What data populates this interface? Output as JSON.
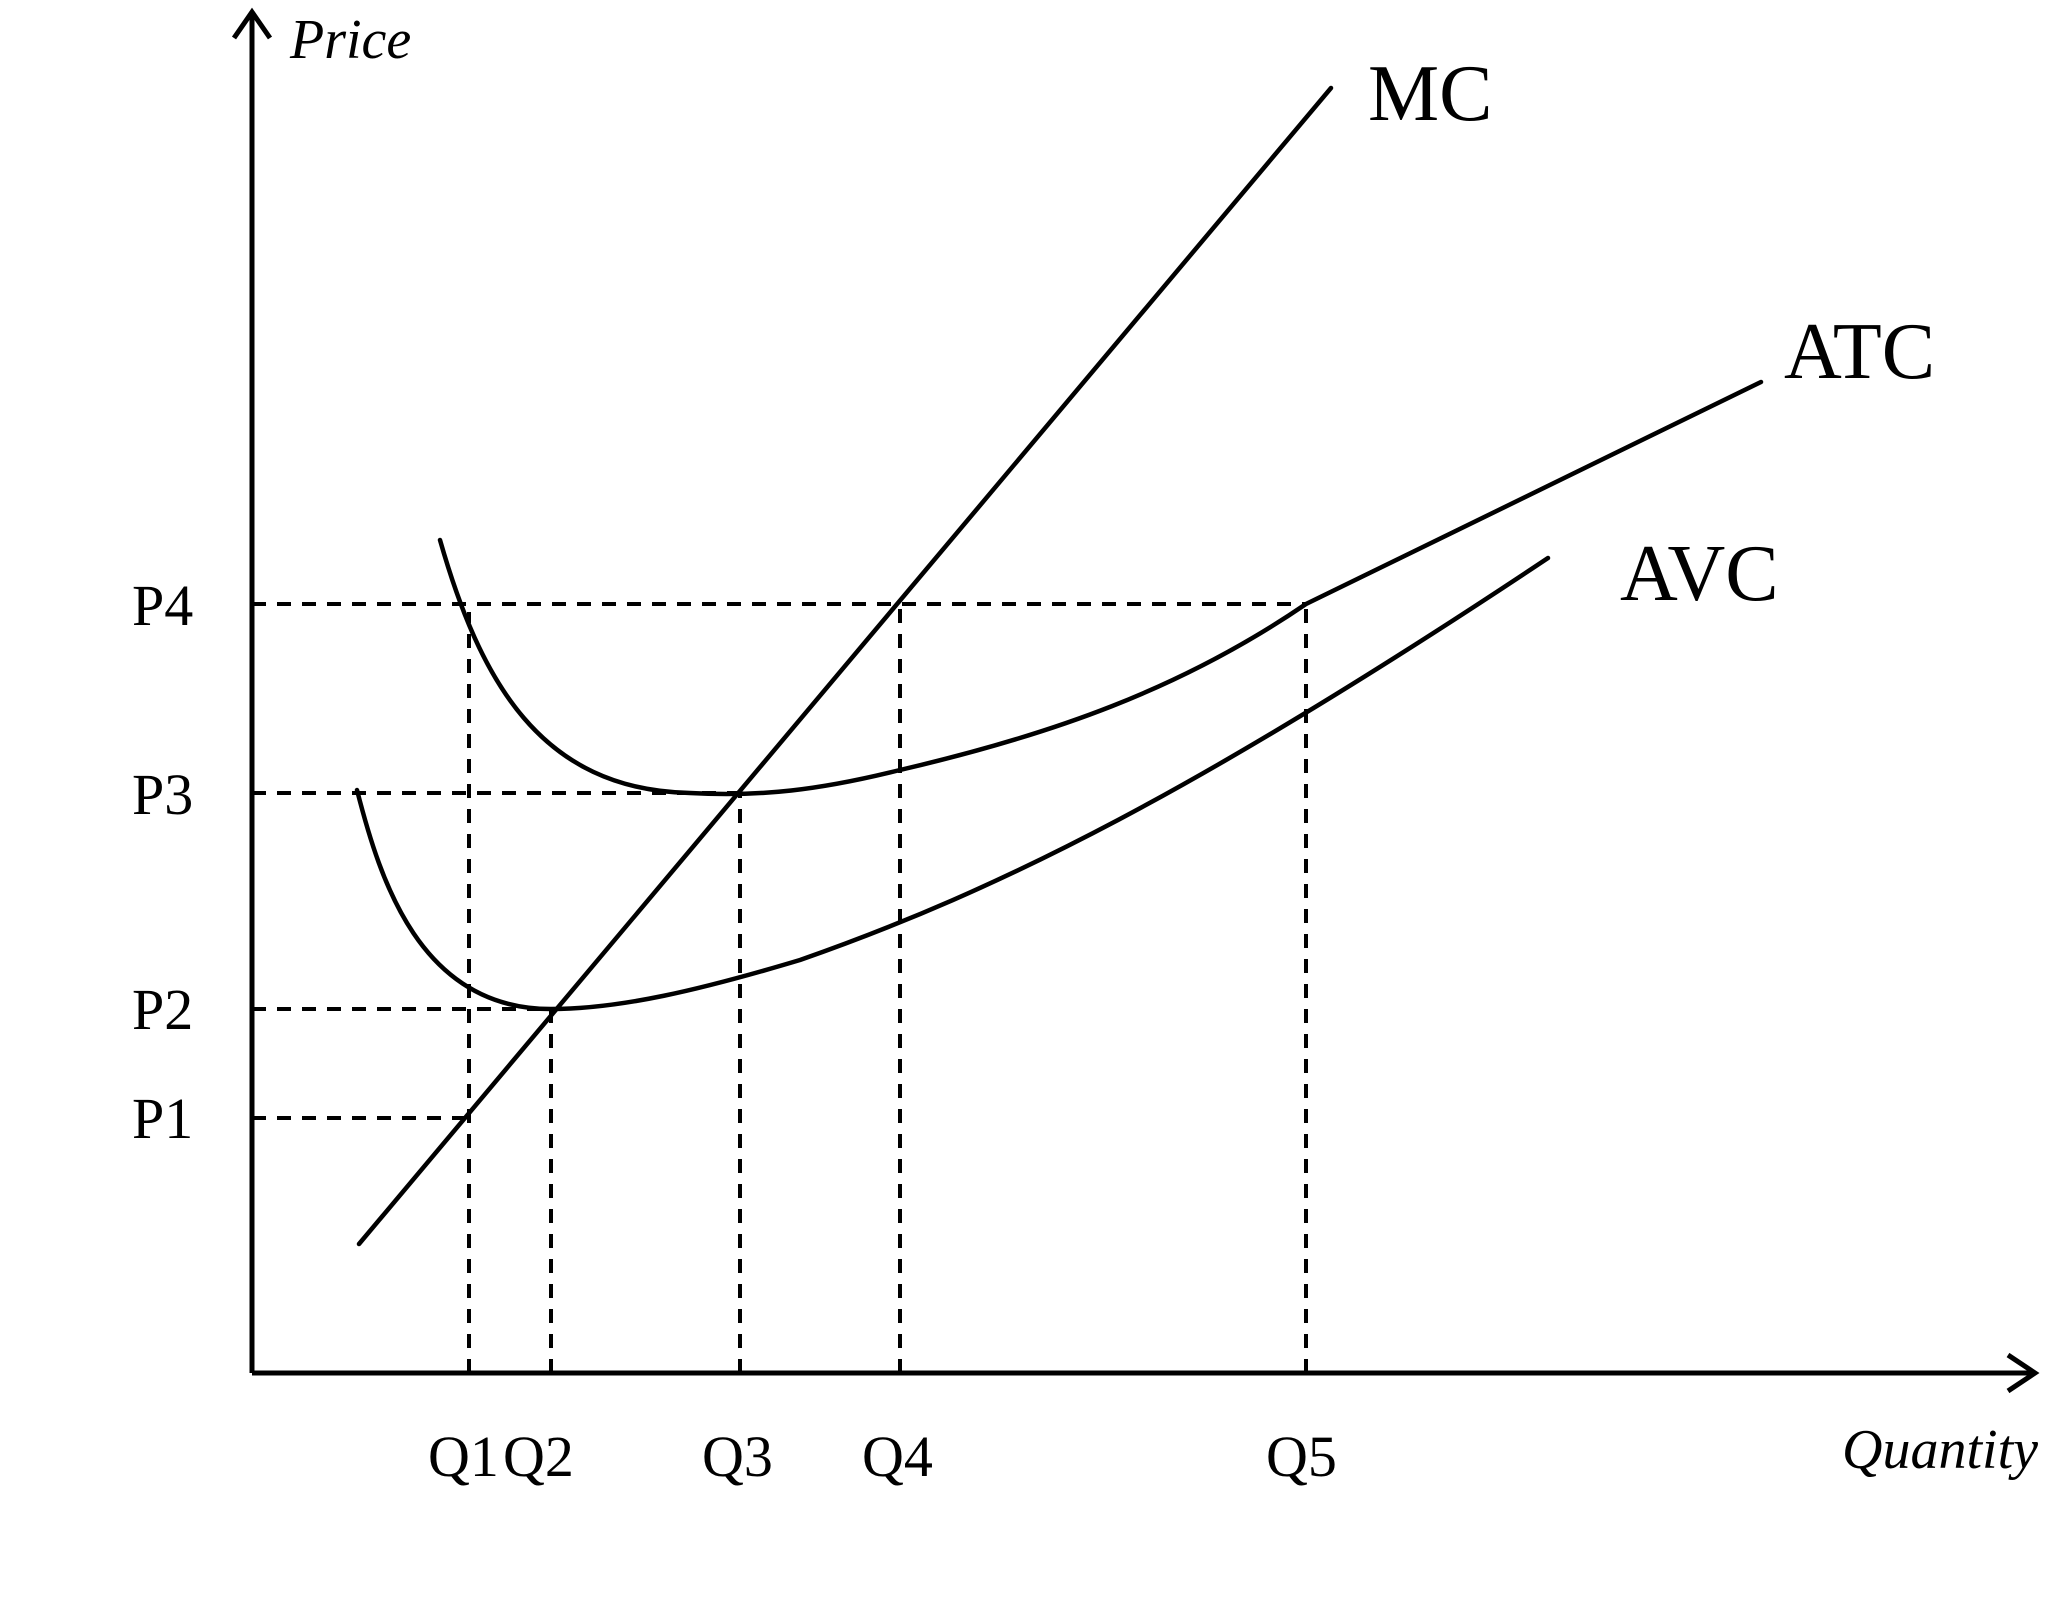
{
  "chart_data": {
    "type": "line",
    "title": "",
    "xlabel": "Quantity",
    "ylabel": "Price",
    "grid": false,
    "legend": "none (curve names labeled directly at line ends)",
    "x_ticks": [
      "Q1",
      "Q2",
      "Q3",
      "Q4",
      "Q5"
    ],
    "y_ticks": [
      "P1",
      "P2",
      "P3",
      "P4"
    ],
    "series": [
      {
        "name": "MC"
      },
      {
        "name": "ATC"
      },
      {
        "name": "AVC"
      }
    ],
    "notes": "Schematic cost curves without numeric scale. MC crosses AVC at its minimum (Q2, P2) and ATC at its minimum (Q3, P3). At P4, MC = P4 at Q4 and ATC = P4 at Q5; at P1, MC = P1 at Q1. Dashed guide lines connect the P levels and Q levels to these points."
  }
}
